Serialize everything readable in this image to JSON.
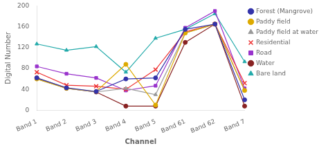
{
  "chart_data": {
    "type": "line",
    "categories": [
      "Band 1",
      "Band 2",
      "Band 3",
      "Band 4",
      "Band 5",
      "Band 61",
      "Band 62",
      "Band 7"
    ],
    "series": [
      {
        "name": "Forest (Mangrove)",
        "color": "#3333aa",
        "marker": "circle",
        "line_style": "solid",
        "values": [
          62,
          43,
          36,
          60,
          62,
          155,
          165,
          20
        ]
      },
      {
        "name": "Paddy field",
        "color": "#ddaa00",
        "marker": "circle",
        "line_style": "solid",
        "values": [
          60,
          42,
          36,
          88,
          10,
          148,
          165,
          38
        ]
      },
      {
        "name": "Paddy field at water",
        "color": "#999999",
        "marker": "triangle",
        "line_style": "solid",
        "values": [
          60,
          42,
          35,
          42,
          30,
          148,
          165,
          38
        ]
      },
      {
        "name": "Residential",
        "color": "#ee3333",
        "marker": "x",
        "line_style": "solid",
        "values": [
          73,
          48,
          46,
          40,
          78,
          150,
          165,
          52
        ]
      },
      {
        "name": "Road",
        "color": "#9933cc",
        "marker": "square",
        "line_style": "solid",
        "values": [
          84,
          70,
          62,
          38,
          47,
          158,
          190,
          42
        ]
      },
      {
        "name": "Water",
        "color": "#882222",
        "marker": "circle",
        "line_style": "solid",
        "values": [
          62,
          42,
          35,
          8,
          8,
          130,
          165,
          8
        ]
      },
      {
        "name": "Bare land",
        "color": "#22aaaa",
        "marker": "triangle",
        "line_style": "solid",
        "values": [
          127,
          115,
          122,
          73,
          138,
          155,
          185,
          93
        ]
      }
    ],
    "xlabel": "Channel",
    "ylabel": "Digital Number",
    "ylim": [
      0,
      200
    ],
    "yticks": [
      0,
      40,
      80,
      120,
      160,
      200
    ],
    "grid": false,
    "legend": "right"
  }
}
